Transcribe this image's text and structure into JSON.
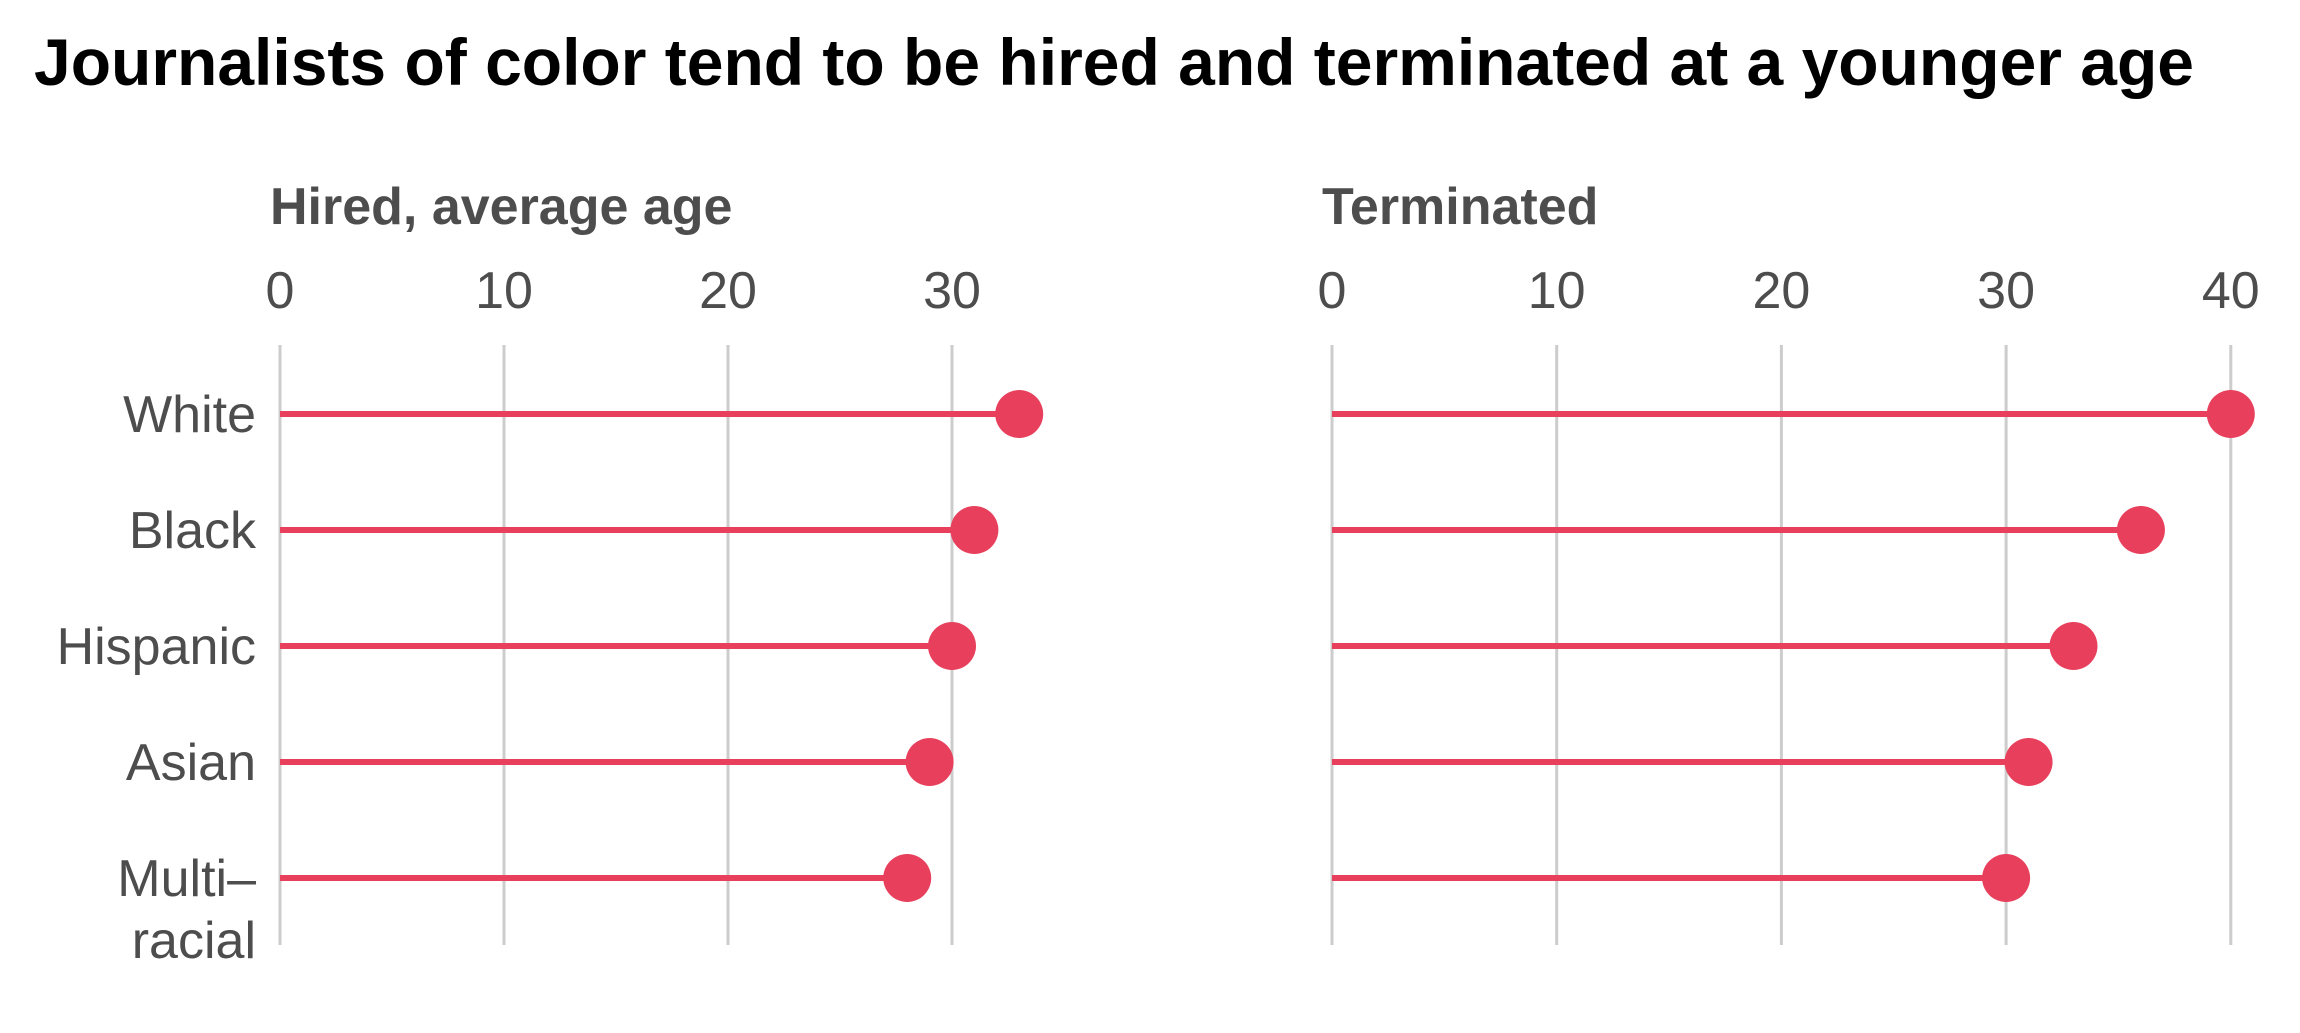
{
  "chart_data": {
    "type": "lollipop",
    "title": "Journalists of color tend to be hired and terminated at a younger age",
    "categories": [
      "White",
      "Black",
      "Hispanic",
      "Asian",
      "Multi–racial"
    ],
    "category_lines": [
      [
        "White"
      ],
      [
        "Black"
      ],
      [
        "Hispanic"
      ],
      [
        "Asian"
      ],
      [
        "Multi–",
        "racial"
      ]
    ],
    "color": "#e8405c",
    "grid": true,
    "panels": [
      {
        "title": "Hired, average age",
        "xlim": [
          0,
          33
        ],
        "ticks": [
          0,
          10,
          20,
          30
        ],
        "values": [
          33,
          31,
          30,
          29,
          28
        ]
      },
      {
        "title": "Terminated",
        "xlim": [
          0,
          40
        ],
        "ticks": [
          0,
          10,
          20,
          30,
          40
        ],
        "values": [
          40,
          36,
          33,
          31,
          30
        ]
      }
    ]
  }
}
